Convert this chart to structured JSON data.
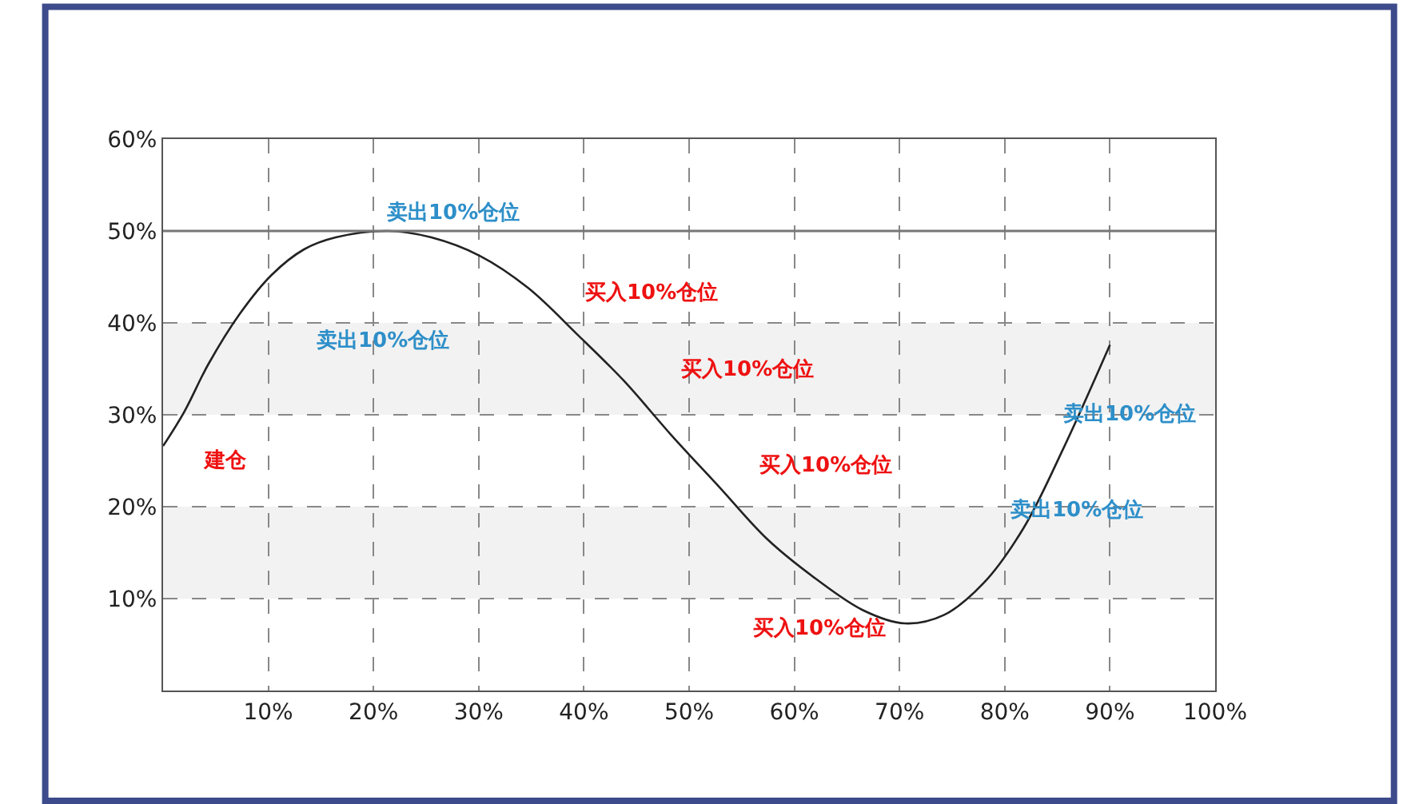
{
  "chart_data": {
    "type": "line",
    "x": [
      0,
      2,
      4.3,
      7.3,
      10.3,
      13.4,
      16.4,
      21.4,
      25.5,
      30.1,
      34.7,
      39.5,
      43.8,
      48.3,
      52.9,
      57.4,
      62,
      66.6,
      70.5,
      74.2,
      78,
      81.8,
      85.6,
      90
    ],
    "series": [
      {
        "color": "#222222",
        "values": [
          26.6,
          30.3,
          35.5,
          41,
          45.2,
          48,
          49.3,
          50,
          49.3,
          47.3,
          43.8,
          38.6,
          33.7,
          27.8,
          22.1,
          16.5,
          12.2,
          8.7,
          7.3,
          8.2,
          11.7,
          17.7,
          26.4,
          37.6
        ]
      }
    ],
    "xlim": [
      0,
      100
    ],
    "ylim": [
      0,
      60
    ],
    "xticks": [
      {
        "value": 0,
        "label": null
      },
      {
        "value": 10,
        "label": "10%"
      },
      {
        "value": 20,
        "label": "20%"
      },
      {
        "value": 30,
        "label": "30%"
      },
      {
        "value": 40,
        "label": "40%"
      },
      {
        "value": 50,
        "label": "50%"
      },
      {
        "value": 60,
        "label": "60%"
      },
      {
        "value": 70,
        "label": "70%"
      },
      {
        "value": 80,
        "label": "80%"
      },
      {
        "value": 90,
        "label": "90%"
      },
      {
        "value": 100,
        "label": "100%"
      }
    ],
    "yticks": [
      {
        "value": 0,
        "label": null
      },
      {
        "value": 10,
        "label": "10%"
      },
      {
        "value": 20,
        "label": "20%"
      },
      {
        "value": 30,
        "label": "30%"
      },
      {
        "value": 40,
        "label": "40%"
      },
      {
        "value": 50,
        "label": "50%"
      },
      {
        "value": 60,
        "label": "60%"
      }
    ],
    "grid": true,
    "marker": "none",
    "line_style": "solid",
    "bands": [
      {
        "axis": "y",
        "from": 30,
        "to": 40,
        "color": "#f2f2f2"
      },
      {
        "axis": "y",
        "from": 10,
        "to": 20,
        "color": "#f2f2f2"
      }
    ],
    "ref_lines": [
      {
        "axis": "y",
        "value": 50,
        "color": "#777777",
        "line_style": "solid"
      }
    ],
    "annotations": [
      "卖出10%仓位",
      "卖出10%仓位",
      "建仓",
      "买入10%仓位",
      "买入10%仓位",
      "买入10%仓位",
      "买入10%仓位",
      "卖出10%仓位",
      "卖出10%仓位"
    ]
  }
}
